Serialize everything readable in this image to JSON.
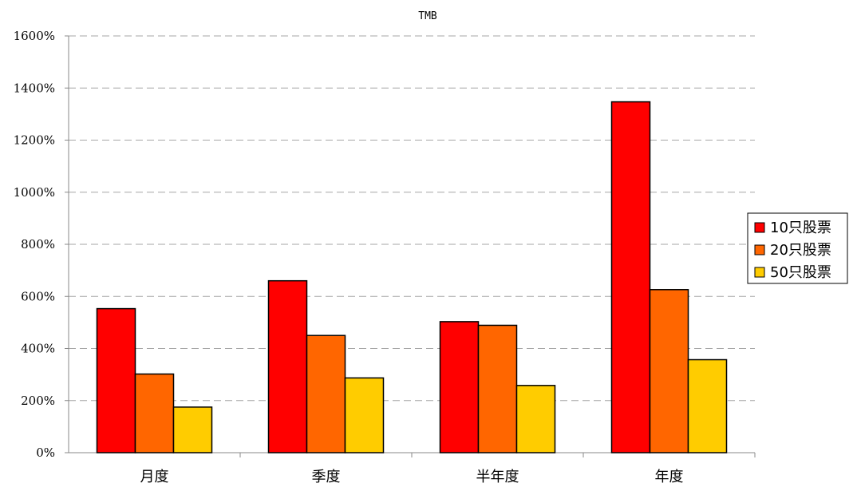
{
  "chart_data": {
    "type": "bar",
    "title": "TMB",
    "xlabel": "",
    "ylabel": "",
    "categories": [
      "月度",
      "季度",
      "半年度",
      "年度"
    ],
    "series": [
      {
        "name": "10只股票",
        "color": "#ff0000",
        "values": [
          5.53,
          6.6,
          5.03,
          13.47
        ]
      },
      {
        "name": "20只股票",
        "color": "#ff6600",
        "values": [
          3.02,
          4.5,
          4.89,
          6.26
        ]
      },
      {
        "name": "50只股票",
        "color": "#ffcc00",
        "values": [
          1.75,
          2.87,
          2.58,
          3.57
        ]
      }
    ],
    "ylim": [
      0,
      16
    ],
    "yticks": [
      "0%",
      "200%",
      "400%",
      "600%",
      "800%",
      "1000%",
      "1200%",
      "1400%",
      "1600%"
    ],
    "y_tick_values": [
      0,
      2,
      4,
      6,
      8,
      10,
      12,
      14,
      16
    ],
    "grid": "dashed horizontal",
    "legend_position": "right"
  }
}
